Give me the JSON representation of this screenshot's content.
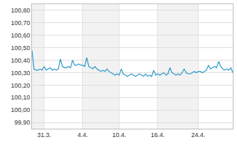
{
  "chart_data": {
    "type": "line",
    "color": "#2a95c8",
    "grid": true,
    "categories": [
      null,
      null,
      null,
      null,
      null,
      null,
      "31.3.",
      null,
      null,
      null,
      null,
      null,
      null,
      null,
      null,
      null,
      null,
      null,
      null,
      null,
      null,
      null,
      null,
      null,
      null,
      "4.4.",
      null,
      null,
      null,
      null,
      null,
      null,
      null,
      null,
      null,
      null,
      null,
      null,
      null,
      null,
      null,
      null,
      null,
      "10.4.",
      null,
      null,
      null,
      null,
      null,
      null,
      null,
      null,
      null,
      null,
      null,
      null,
      null,
      null,
      null,
      null,
      null,
      null,
      "16.4.",
      null,
      null,
      null,
      null,
      null,
      null,
      null,
      null,
      null,
      null,
      null,
      null,
      null,
      null,
      null,
      null,
      null,
      null,
      null,
      "24.4.",
      null,
      null,
      null,
      null,
      null,
      null,
      null,
      null,
      null,
      null,
      null,
      null,
      null,
      null,
      null,
      null,
      null
    ],
    "values": [
      100.48,
      100.33,
      100.32,
      100.32,
      100.33,
      100.32,
      100.35,
      100.32,
      100.33,
      100.34,
      100.32,
      100.33,
      100.32,
      100.33,
      100.41,
      100.35,
      100.34,
      100.34,
      100.35,
      100.34,
      100.4,
      100.36,
      100.36,
      100.37,
      100.36,
      100.36,
      100.35,
      100.42,
      100.35,
      100.34,
      100.33,
      100.35,
      100.33,
      100.32,
      100.31,
      100.32,
      100.31,
      100.33,
      100.31,
      100.3,
      100.29,
      100.28,
      100.29,
      100.28,
      100.33,
      100.29,
      100.28,
      100.27,
      100.28,
      100.29,
      100.28,
      100.27,
      100.28,
      100.29,
      100.28,
      100.27,
      100.29,
      100.27,
      100.28,
      100.27,
      100.32,
      100.28,
      100.29,
      100.28,
      100.29,
      100.3,
      100.28,
      100.29,
      100.34,
      100.3,
      100.29,
      100.28,
      100.29,
      100.28,
      100.3,
      100.33,
      100.3,
      100.29,
      100.29,
      100.3,
      100.31,
      100.3,
      100.31,
      100.31,
      100.3,
      100.31,
      100.32,
      100.36,
      100.33,
      100.34,
      100.35,
      100.34,
      100.39,
      100.35,
      100.33,
      100.32,
      100.33,
      100.32,
      100.34,
      100.3
    ],
    "ylim": [
      99.85,
      100.85
    ],
    "yticks": [
      {
        "value": 99.9,
        "label": "99,90"
      },
      {
        "value": 100.0,
        "label": "100,00"
      },
      {
        "value": 100.1,
        "label": "100,10"
      },
      {
        "value": 100.2,
        "label": "100,20"
      },
      {
        "value": 100.3,
        "label": "100,30"
      },
      {
        "value": 100.4,
        "label": "100,40"
      },
      {
        "value": 100.5,
        "label": "100,50"
      },
      {
        "value": 100.6,
        "label": "100,60"
      },
      {
        "value": 100.7,
        "label": "100,70"
      },
      {
        "value": 100.8,
        "label": "100,80"
      }
    ]
  }
}
